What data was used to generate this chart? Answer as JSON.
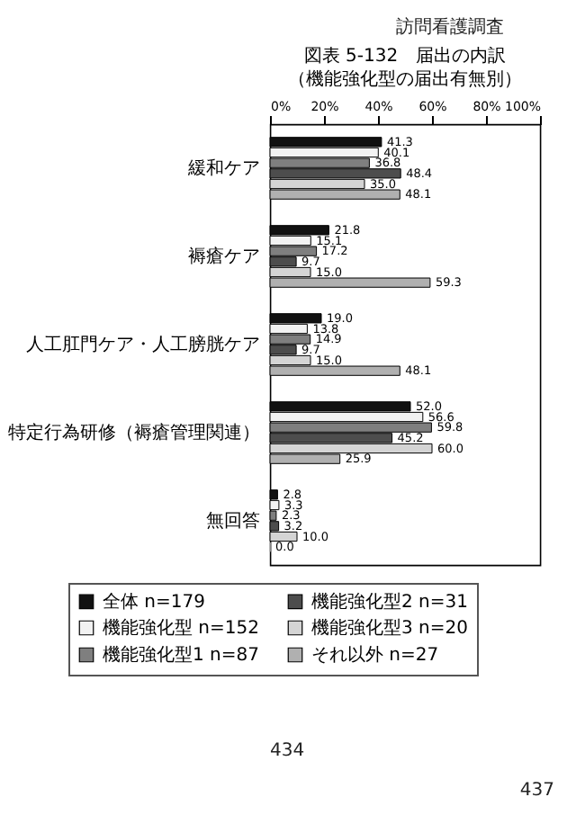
{
  "chart_data": {
    "type": "bar",
    "orientation": "horizontal",
    "title": "図表 5-132　届出の内訳",
    "subtitle": "（機能強化型の届出有無別）",
    "categories": [
      "緩和ケア",
      "褥瘡ケア",
      "人工肛門ケア・人工膀胱ケア",
      "特定行為研修（褥瘡管理関連）",
      "無回答"
    ],
    "series": [
      {
        "name": "全体 n=179",
        "color": "#111111",
        "values": [
          41.3,
          21.8,
          19.0,
          52.0,
          2.8
        ],
        "value_labels": [
          "41.3",
          "21.8",
          "19.0",
          "52.0",
          "2.8"
        ]
      },
      {
        "name": "機能強化型 n=152",
        "color": "#f2f2f2",
        "values": [
          40.1,
          15.1,
          13.8,
          56.6,
          3.3
        ],
        "value_labels": [
          "40.1",
          "15.1",
          "13.8",
          "56.6",
          "3.3"
        ]
      },
      {
        "name": "機能強化型1 n=87",
        "color": "#7f7f7f",
        "values": [
          36.8,
          17.2,
          14.9,
          59.8,
          2.3
        ],
        "value_labels": [
          "36.8",
          "17.2",
          "14.9",
          "59.8",
          "2.3"
        ]
      },
      {
        "name": "機能強化型2 n=31",
        "color": "#4d4d4d",
        "values": [
          48.4,
          9.7,
          9.7,
          45.2,
          3.2
        ],
        "value_labels": [
          "48.4",
          "9.7",
          "9.7",
          "45.2",
          "3.2"
        ]
      },
      {
        "name": "機能強化型3 n=20",
        "color": "#d4d4d4",
        "values": [
          35.0,
          15.0,
          15.0,
          60.0,
          10.0
        ],
        "value_labels": [
          "35.0",
          "15.0",
          "15.0",
          "60.0",
          "10.0"
        ]
      },
      {
        "name": "それ以外 n=27",
        "color": "#b0b0b0",
        "values": [
          48.1,
          59.3,
          48.1,
          25.9,
          0.0
        ],
        "value_labels": [
          "48.1",
          "59.3",
          "48.1",
          "25.9",
          "0.0"
        ]
      }
    ],
    "xlim": [
      0,
      100
    ],
    "xticks": [
      {
        "value": 0,
        "label": "0%"
      },
      {
        "value": 20,
        "label": "20%"
      },
      {
        "value": 40,
        "label": "40%"
      },
      {
        "value": 60,
        "label": "60%"
      },
      {
        "value": 80,
        "label": "80%"
      },
      {
        "value": 100,
        "label": "100%"
      }
    ],
    "grid": false,
    "legend": "bottom",
    "annotations": [
      "訪問看護調査",
      "434",
      "437"
    ]
  }
}
